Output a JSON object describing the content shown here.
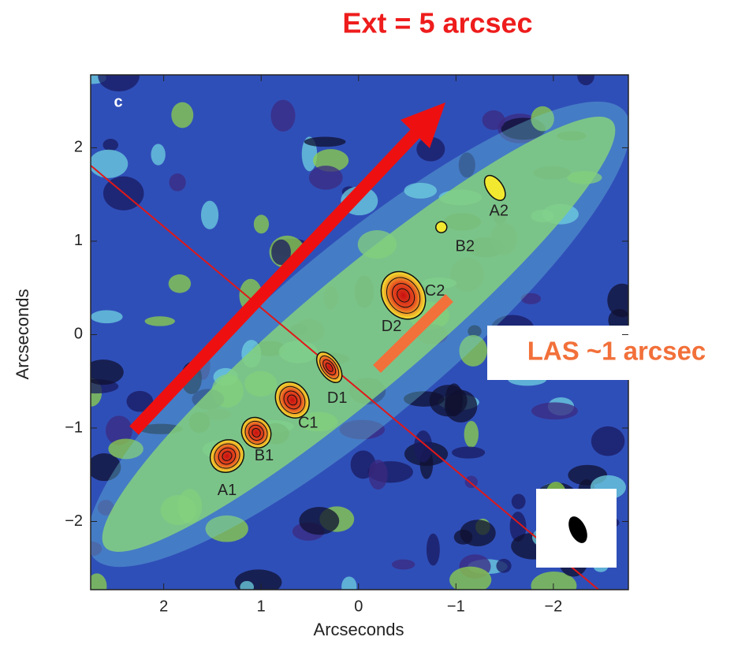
{
  "title": "Ext = 5 arcsec",
  "annotation": "LAS ~1 arcsec",
  "panel": {
    "label": "c",
    "xlabel": "Arcseconds",
    "ylabel": "Arcseconds",
    "xlim": [
      2.75,
      -2.77
    ],
    "ylim": [
      -2.73,
      2.78
    ],
    "xticks": [
      2,
      1,
      0,
      {
        "value": -1,
        "label": "−1"
      },
      {
        "value": -2,
        "label": "−2"
      }
    ],
    "yticks": [
      {
        "value": -2,
        "label": "−2"
      },
      {
        "value": -1,
        "label": "−1"
      },
      0,
      1,
      2
    ],
    "sources": [
      {
        "label": "A1",
        "x": 1.35,
        "y": -1.3
      },
      {
        "label": "B1",
        "x": 1.05,
        "y": -1.05
      },
      {
        "label": "C1",
        "x": 0.68,
        "y": -0.7
      },
      {
        "label": "D1",
        "x": 0.3,
        "y": -0.35
      },
      {
        "label": "D2",
        "x": -0.46,
        "y": 0.42
      },
      {
        "label": "C2",
        "x": -0.46,
        "y": 0.42
      },
      {
        "label": "B2",
        "x": -0.85,
        "y": 1.15
      },
      {
        "label": "A2",
        "x": -1.4,
        "y": 1.57
      }
    ]
  }
}
